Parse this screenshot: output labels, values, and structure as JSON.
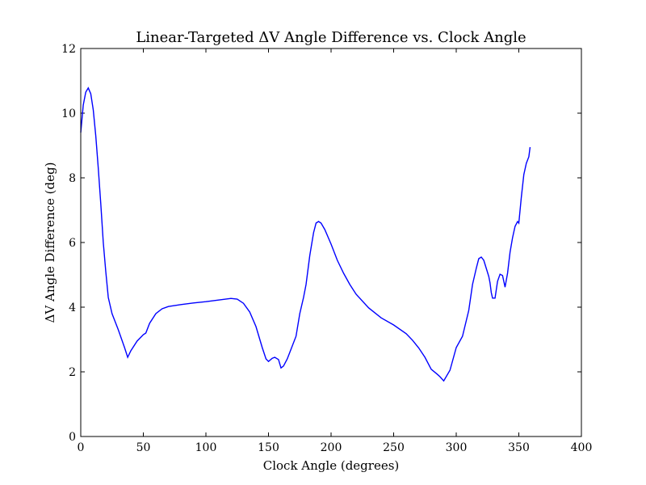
{
  "chart_data": {
    "type": "line",
    "title": "Linear-Targeted ΔV Angle Difference vs. Clock Angle",
    "xlabel": "Clock Angle (degrees)",
    "ylabel": "ΔV Angle Difference (deg)",
    "xlim": [
      0,
      400
    ],
    "ylim": [
      0,
      12
    ],
    "xticks": [
      0,
      50,
      100,
      150,
      200,
      250,
      300,
      350,
      400
    ],
    "yticks": [
      0,
      2,
      4,
      6,
      8,
      10,
      12
    ],
    "grid": false,
    "line_color": "#0000ff",
    "series": [
      {
        "x": [
          0,
          2,
          4,
          6,
          8,
          10,
          12,
          14,
          16,
          18,
          20,
          22,
          25,
          30,
          35,
          37.5,
          40,
          45,
          50,
          52,
          55,
          60,
          65,
          70,
          80,
          90,
          100,
          110,
          120,
          125,
          130,
          135,
          140,
          145,
          148,
          150,
          153,
          155,
          158,
          160,
          162,
          165,
          168,
          172,
          175,
          178,
          180,
          183,
          186,
          188,
          190,
          192,
          195,
          200,
          205,
          210,
          215,
          220,
          230,
          240,
          250,
          260,
          265,
          270,
          275,
          280,
          285,
          287,
          290,
          295,
          300,
          305,
          310,
          313,
          316,
          318,
          320,
          322,
          324,
          326,
          327,
          328,
          329,
          331,
          333,
          335,
          337,
          338,
          339,
          341,
          343,
          345,
          347,
          349,
          350,
          352,
          354,
          356,
          357,
          358,
          359
        ],
        "y": [
          9.4,
          10.25,
          10.65,
          10.78,
          10.6,
          10.1,
          9.3,
          8.3,
          7.2,
          6.0,
          5.1,
          4.3,
          3.8,
          3.3,
          2.75,
          2.45,
          2.65,
          2.95,
          3.15,
          3.2,
          3.5,
          3.8,
          3.95,
          4.02,
          4.08,
          4.13,
          4.17,
          4.22,
          4.27,
          4.25,
          4.12,
          3.85,
          3.4,
          2.75,
          2.4,
          2.32,
          2.42,
          2.45,
          2.38,
          2.12,
          2.18,
          2.4,
          2.7,
          3.1,
          3.8,
          4.3,
          4.7,
          5.6,
          6.3,
          6.6,
          6.65,
          6.6,
          6.4,
          5.95,
          5.45,
          5.05,
          4.7,
          4.4,
          3.98,
          3.67,
          3.45,
          3.18,
          2.98,
          2.74,
          2.45,
          2.08,
          1.92,
          1.85,
          1.72,
          2.05,
          2.75,
          3.1,
          3.9,
          4.7,
          5.2,
          5.5,
          5.55,
          5.45,
          5.2,
          4.95,
          4.75,
          4.45,
          4.28,
          4.28,
          4.8,
          5.02,
          4.98,
          4.8,
          4.62,
          5.05,
          5.7,
          6.15,
          6.5,
          6.65,
          6.6,
          7.4,
          8.1,
          8.45,
          8.55,
          8.65,
          8.95
        ]
      }
    ]
  }
}
